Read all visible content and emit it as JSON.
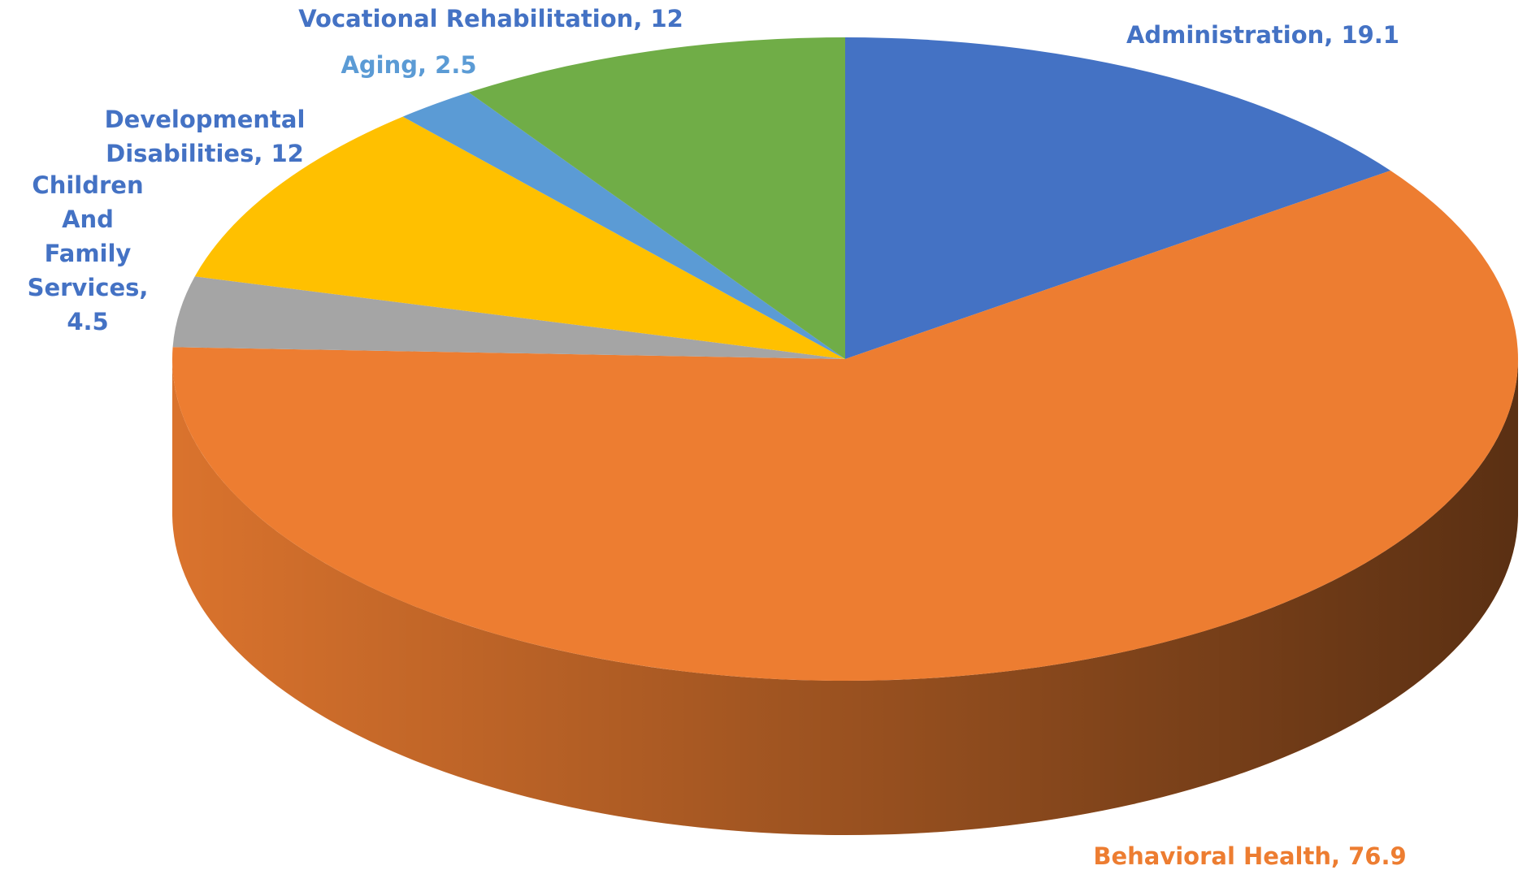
{
  "chart_data": {
    "type": "pie3d",
    "categories": [
      "Administration",
      "Behavioral Health",
      "Children And Family Services",
      "Developmental Disabilities",
      "Aging",
      "Vocational Rehabilitation"
    ],
    "values": [
      19.1,
      76.9,
      4.5,
      12,
      2.5,
      12
    ],
    "colors": [
      "#4472c4",
      "#ed7d31",
      "#a5a5a5",
      "#ffc000",
      "#5b9bd5",
      "#70ad47"
    ],
    "label_colors": [
      "#4472c4",
      "#ed7d31",
      "#4472c4",
      "#4472c4",
      "#5b9bd5",
      "#4472c4"
    ],
    "label_separator": ", "
  }
}
